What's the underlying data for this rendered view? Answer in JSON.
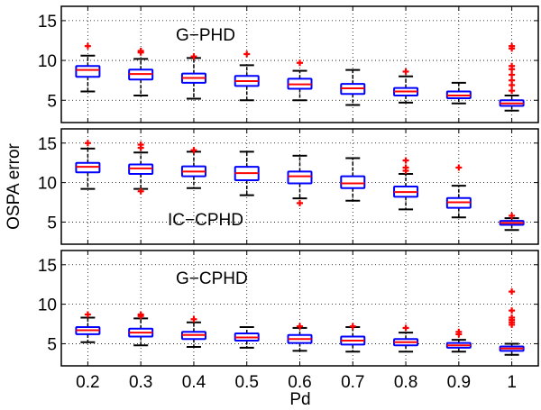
{
  "chart_data": {
    "type": "boxplot",
    "xlabel": "Pd",
    "ylabel": "OSPA error",
    "categories": [
      "0.2",
      "0.3",
      "0.4",
      "0.5",
      "0.6",
      "0.7",
      "0.8",
      "0.9",
      "1"
    ],
    "ylim": [
      2.2,
      16.8
    ],
    "yticks": [
      5,
      10,
      15
    ],
    "grid": true,
    "colors": {
      "box": "#0000ff",
      "median": "#ff0000",
      "outlier": "#ff0000",
      "whisker": "#000000"
    },
    "panels": [
      {
        "label": "G−PHD",
        "boxes": [
          {
            "q1": 7.95,
            "median": 8.8,
            "q3": 9.3,
            "whisker_low": 6.1,
            "whisker_high": 10.6,
            "outliers": [
              11.8
            ]
          },
          {
            "q1": 7.6,
            "median": 8.3,
            "q3": 8.85,
            "whisker_low": 5.6,
            "whisker_high": 10.2,
            "outliers": [
              11.2,
              11.0
            ]
          },
          {
            "q1": 7.2,
            "median": 7.8,
            "q3": 8.35,
            "whisker_low": 5.2,
            "whisker_high": 10.3,
            "outliers": [
              10.5
            ]
          },
          {
            "q1": 6.8,
            "median": 7.4,
            "q3": 8.05,
            "whisker_low": 5.0,
            "whisker_high": 9.4,
            "outliers": [
              10.8
            ]
          },
          {
            "q1": 6.45,
            "median": 7.0,
            "q3": 7.7,
            "whisker_low": 5.0,
            "whisker_high": 8.7,
            "outliers": [
              9.7
            ]
          },
          {
            "q1": 5.8,
            "median": 6.5,
            "q3": 7.05,
            "whisker_low": 4.4,
            "whisker_high": 8.8,
            "outliers": []
          },
          {
            "q1": 5.6,
            "median": 6.1,
            "q3": 6.55,
            "whisker_low": 4.7,
            "whisker_high": 8.0,
            "outliers": [
              8.6
            ]
          },
          {
            "q1": 5.25,
            "median": 5.6,
            "q3": 6.1,
            "whisker_low": 4.6,
            "whisker_high": 7.2,
            "outliers": []
          },
          {
            "q1": 4.3,
            "median": 4.6,
            "q3": 5.0,
            "whisker_low": 3.7,
            "whisker_high": 5.6,
            "outliers": [
              6.2,
              6.9,
              7.5,
              8.2,
              8.9,
              9.3,
              11.5,
              11.8
            ]
          }
        ]
      },
      {
        "label": "IC−CPHD",
        "boxes": [
          {
            "q1": 11.3,
            "median": 12.0,
            "q3": 12.5,
            "whisker_low": 9.2,
            "whisker_high": 14.3,
            "outliers": [
              15.0
            ]
          },
          {
            "q1": 11.1,
            "median": 11.8,
            "q3": 12.3,
            "whisker_low": 9.2,
            "whisker_high": 13.8,
            "outliers": [
              14.8,
              14.4,
              8.9
            ]
          },
          {
            "q1": 10.8,
            "median": 11.4,
            "q3": 12.05,
            "whisker_low": 9.3,
            "whisker_high": 13.9,
            "outliers": [
              14.1
            ]
          },
          {
            "q1": 10.3,
            "median": 11.2,
            "q3": 12.0,
            "whisker_low": 8.4,
            "whisker_high": 13.9,
            "outliers": []
          },
          {
            "q1": 9.9,
            "median": 10.8,
            "q3": 11.4,
            "whisker_low": 8.0,
            "whisker_high": 13.4,
            "outliers": [
              7.4
            ]
          },
          {
            "q1": 9.3,
            "median": 9.9,
            "q3": 10.8,
            "whisker_low": 7.7,
            "whisker_high": 13.1,
            "outliers": []
          },
          {
            "q1": 8.2,
            "median": 8.8,
            "q3": 9.5,
            "whisker_low": 6.6,
            "whisker_high": 11.1,
            "outliers": [
              11.5,
              11.9,
              12.8
            ]
          },
          {
            "q1": 6.8,
            "median": 7.5,
            "q3": 8.05,
            "whisker_low": 5.6,
            "whisker_high": 9.6,
            "outliers": [
              11.9
            ]
          },
          {
            "q1": 4.65,
            "median": 4.9,
            "q3": 5.15,
            "whisker_low": 4.0,
            "whisker_high": 5.5,
            "outliers": [
              5.8
            ]
          }
        ]
      },
      {
        "label": "G−CPHD",
        "boxes": [
          {
            "q1": 6.2,
            "median": 6.7,
            "q3": 7.1,
            "whisker_low": 5.2,
            "whisker_high": 8.3,
            "outliers": [
              8.7
            ]
          },
          {
            "q1": 5.9,
            "median": 6.4,
            "q3": 6.9,
            "whisker_low": 4.8,
            "whisker_high": 8.2,
            "outliers": [
              8.5,
              8.7
            ]
          },
          {
            "q1": 5.6,
            "median": 6.1,
            "q3": 6.5,
            "whisker_low": 4.6,
            "whisker_high": 7.7,
            "outliers": [
              8.1
            ]
          },
          {
            "q1": 5.4,
            "median": 5.8,
            "q3": 6.3,
            "whisker_low": 4.5,
            "whisker_high": 7.1,
            "outliers": []
          },
          {
            "q1": 5.1,
            "median": 5.6,
            "q3": 6.1,
            "whisker_low": 4.1,
            "whisker_high": 7.0,
            "outliers": [
              7.2
            ]
          },
          {
            "q1": 4.9,
            "median": 5.4,
            "q3": 5.9,
            "whisker_low": 4.0,
            "whisker_high": 7.1,
            "outliers": [
              7.2
            ]
          },
          {
            "q1": 4.8,
            "median": 5.2,
            "q3": 5.6,
            "whisker_low": 4.0,
            "whisker_high": 6.4,
            "outliers": [
              7.0
            ]
          },
          {
            "q1": 4.5,
            "median": 4.8,
            "q3": 5.1,
            "whisker_low": 4.0,
            "whisker_high": 5.5,
            "outliers": [
              6.2,
              6.5
            ]
          },
          {
            "q1": 4.1,
            "median": 4.4,
            "q3": 4.65,
            "whisker_low": 3.6,
            "whisker_high": 5.0,
            "outliers": [
              7.4,
              7.7,
              8.0,
              8.3,
              9.2,
              11.6
            ]
          }
        ]
      }
    ]
  }
}
